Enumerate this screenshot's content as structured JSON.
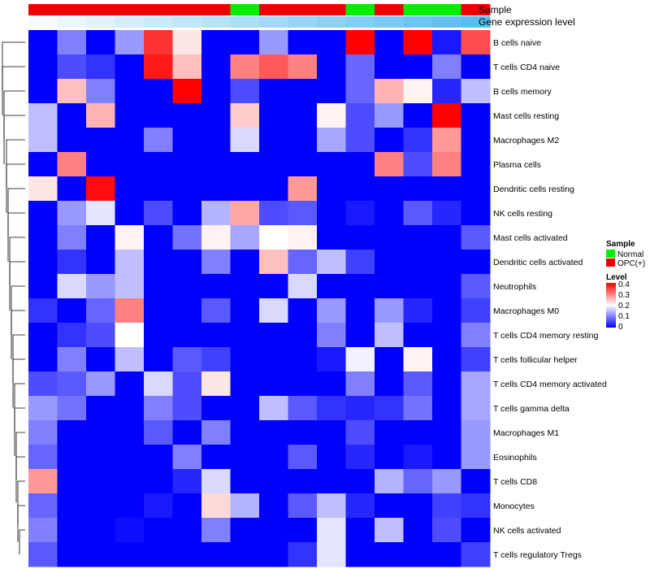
{
  "chart_data": {
    "type": "heatmap",
    "rows": [
      "B cells naive",
      "T cells CD4 naive",
      "B cells memory",
      "Mast cells resting",
      "Macrophages M2",
      "Plasma cells",
      "Dendritic cells resting",
      "NK cells resting",
      "Mast cells activated",
      "Dendritic cells activated",
      "Neutrophils",
      "Macrophages M0",
      "T cells CD4 memory resting",
      "T cells follicular helper",
      "T cells CD4 memory activated",
      "T cells gamma delta",
      "Macrophages M1",
      "Eosinophils",
      "T cells CD8",
      "Monocytes",
      "NK cells activated",
      "T cells regulatory  Tregs"
    ],
    "column_sample": [
      "OPC(+)",
      "OPC(+)",
      "OPC(+)",
      "OPC(+)",
      "OPC(+)",
      "OPC(+)",
      "OPC(+)",
      "Normal",
      "OPC(+)",
      "OPC(+)",
      "OPC(+)",
      "Normal",
      "OPC(+)",
      "Normal",
      "Normal",
      "OPC(+)"
    ],
    "column_expression_level": [
      0.02,
      0.04,
      0.06,
      0.08,
      0.1,
      0.12,
      0.14,
      0.16,
      0.18,
      0.2,
      0.22,
      0.24,
      0.26,
      0.28,
      0.3,
      0.32
    ],
    "values": [
      [
        0,
        0.1,
        0,
        0.12,
        0.36,
        0.22,
        0,
        0,
        0.12,
        0,
        0,
        0.4,
        0,
        0.4,
        0.02,
        0.34
      ],
      [
        0,
        0.06,
        0.04,
        0,
        0.38,
        0.25,
        0,
        0.3,
        0.33,
        0.3,
        0,
        0.08,
        0,
        0,
        0.1,
        0
      ],
      [
        0,
        0.25,
        0.1,
        0,
        0,
        0.4,
        0,
        0.06,
        0,
        0,
        0,
        0.08,
        0.26,
        0.21,
        0.03,
        0.15
      ],
      [
        0.15,
        0,
        0.26,
        0,
        0,
        0,
        0,
        0.24,
        0,
        0,
        0.21,
        0.06,
        0.12,
        0,
        0.4,
        0
      ],
      [
        0.15,
        0,
        0,
        0,
        0.1,
        0,
        0,
        0.17,
        0,
        0,
        0.13,
        0.06,
        0,
        0.04,
        0.28,
        0
      ],
      [
        0,
        0.3,
        0,
        0,
        0,
        0,
        0,
        0,
        0,
        0,
        0,
        0,
        0.3,
        0.06,
        0.3,
        0
      ],
      [
        0.22,
        0,
        0.39,
        0,
        0,
        0,
        0,
        0,
        0,
        0.28,
        0,
        0,
        0,
        0,
        0,
        0
      ],
      [
        0,
        0.12,
        0.18,
        0,
        0.06,
        0,
        0.14,
        0.27,
        0.06,
        0.07,
        0,
        0.02,
        0,
        0.07,
        0.03,
        0
      ],
      [
        0,
        0.1,
        0,
        0.21,
        0,
        0.09,
        0.21,
        0.13,
        0.2,
        0.21,
        0,
        0,
        0,
        0,
        0,
        0.07
      ],
      [
        0,
        0.04,
        0,
        0.15,
        0,
        0,
        0.1,
        0,
        0.25,
        0.08,
        0.15,
        0.05,
        0,
        0,
        0,
        0
      ],
      [
        0,
        0.17,
        0.12,
        0.15,
        0,
        0,
        0,
        0,
        0,
        0.17,
        0,
        0,
        0,
        0,
        0,
        0.07
      ],
      [
        0.04,
        0,
        0.08,
        0.3,
        0,
        0,
        0.07,
        0,
        0.17,
        0,
        0.12,
        0,
        0.12,
        0.03,
        0,
        0.05
      ],
      [
        0,
        0.04,
        0.06,
        0.2,
        0,
        0,
        0,
        0,
        0,
        0,
        0.1,
        0,
        0.15,
        0,
        0,
        0.1
      ],
      [
        0,
        0.1,
        0,
        0.15,
        0,
        0.07,
        0.05,
        0,
        0,
        0,
        0.02,
        0.19,
        0,
        0.21,
        0,
        0.05
      ],
      [
        0.06,
        0.07,
        0.12,
        0,
        0.17,
        0.06,
        0.22,
        0,
        0,
        0,
        0,
        0.1,
        0,
        0.07,
        0,
        0.13
      ],
      [
        0.12,
        0.09,
        0,
        0,
        0.1,
        0.06,
        0,
        0,
        0.15,
        0.07,
        0.04,
        0.03,
        0.04,
        0.09,
        0,
        0.13
      ],
      [
        0.1,
        0,
        0,
        0,
        0.07,
        0,
        0.1,
        0,
        0,
        0,
        0,
        0.06,
        0,
        0,
        0,
        0.12
      ],
      [
        0.08,
        0,
        0,
        0,
        0,
        0.1,
        0,
        0,
        0,
        0.07,
        0,
        0.03,
        0,
        0.02,
        0,
        0.12
      ],
      [
        0.28,
        0,
        0,
        0,
        0,
        0.03,
        0.17,
        0,
        0,
        0,
        0,
        0,
        0.14,
        0.08,
        0.12,
        0
      ],
      [
        0.08,
        0,
        0,
        0,
        0.02,
        0,
        0.23,
        0.14,
        0,
        0.07,
        0.15,
        0.03,
        0,
        0,
        0.05,
        0.04
      ],
      [
        0.1,
        0,
        0,
        0.01,
        0,
        0,
        0.1,
        0,
        0,
        0,
        0.18,
        0,
        0.15,
        0,
        0.06,
        0
      ],
      [
        0.07,
        0,
        0,
        0,
        0,
        0,
        0,
        0,
        0,
        0.04,
        0.18,
        0,
        0,
        0,
        0,
        0.05
      ]
    ],
    "annotation_labels": {
      "sample": "Sample",
      "expression": "Gene expression level"
    },
    "legend": {
      "sample_title": "Sample",
      "sample_items": [
        {
          "label": "Normal",
          "color": "#00ee00"
        },
        {
          "label": "OPC(+)",
          "color": "#ee0000"
        }
      ],
      "level_title": "Level",
      "level_ticks": [
        "0.4",
        "0.3",
        "0.2",
        "0.1",
        "0"
      ],
      "level_range": [
        0,
        0.4
      ]
    },
    "colors": {
      "low": "#0000ff",
      "mid": "#ffffff",
      "high": "#ff0000",
      "expression_low": "#ffffff",
      "expression_high": "#5bbcf0"
    },
    "dendrogram": "left (row clustering)",
    "legend_placement": "right"
  }
}
